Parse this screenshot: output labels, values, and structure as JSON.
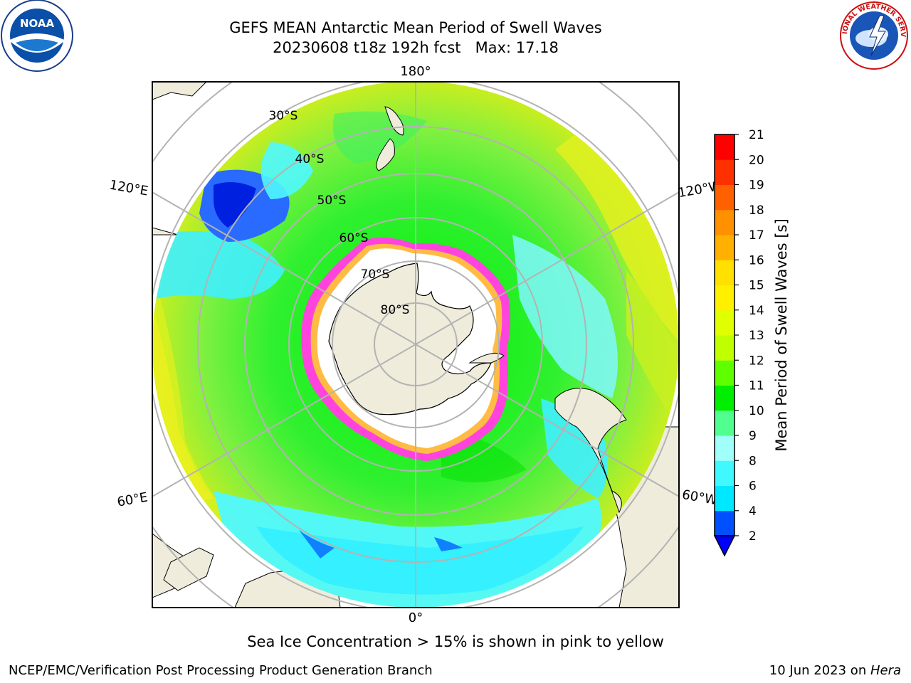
{
  "title": {
    "line1": "GEFS MEAN Antarctic Mean Period of Swell Waves",
    "line2": "20230608 t18z 192h fcst   Max: 17.18"
  },
  "map": {
    "projection": "south-polar-stereographic",
    "lon_labels": {
      "top": "180°",
      "bottom": "0°",
      "left_upper": "120°E",
      "left_lower": "60°E",
      "right_upper": "120°W",
      "right_lower": "60°W"
    },
    "lat_labels": [
      "30°S",
      "40°S",
      "50°S",
      "60°S",
      "70°S",
      "80°S"
    ],
    "colors": {
      "land": "#efecdc",
      "grid": "#b3b3b3",
      "sea_ice_pink": "#ff44dd",
      "sea_ice_yellow": "#ffbb44"
    }
  },
  "colorbar": {
    "label": "Mean Period of Swell Waves [s]",
    "ticks": [
      "2",
      "4",
      "6",
      "8",
      "9",
      "10",
      "11",
      "12",
      "13",
      "14",
      "15",
      "16",
      "17",
      "18",
      "19",
      "20",
      "21"
    ],
    "colors": [
      "#0050ff",
      "#00e8ff",
      "#40f8ff",
      "#a0fff8",
      "#50ff90",
      "#00ee00",
      "#60ff00",
      "#c0ff00",
      "#e0ff00",
      "#fff000",
      "#ffe000",
      "#ffb000",
      "#ff9000",
      "#ff6000",
      "#ff3000",
      "#ff0000"
    ],
    "under_color": "#0000ff"
  },
  "note": "Sea Ice Concentration > 15% is shown in pink to yellow",
  "footer": {
    "left": "NCEP/EMC/Verification Post Processing Product Generation Branch",
    "right_prefix": "10 Jun 2023 on ",
    "right_host": "Hera"
  },
  "logos": {
    "noaa_text": "NOAA",
    "nws_text": "NATIONAL WEATHER SERVICE"
  }
}
